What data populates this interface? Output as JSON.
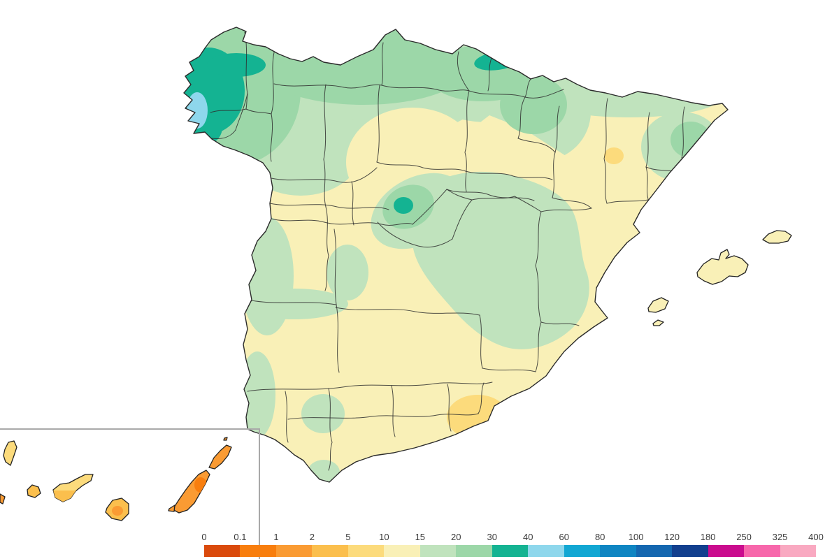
{
  "figure": {
    "type": "precipitation-choropleth-map",
    "country": "spain",
    "background": "#ffffff"
  },
  "legend": {
    "ticks": [
      "0",
      "0.1",
      "1",
      "2",
      "5",
      "10",
      "15",
      "20",
      "30",
      "40",
      "60",
      "80",
      "100",
      "120",
      "180",
      "250",
      "325",
      "400"
    ],
    "segment_order": [
      "0-0.1",
      "0.1-1",
      "1-2",
      "2-5",
      "5-10",
      "10-15",
      "15-20",
      "20-30",
      "30-40",
      "40-60",
      "60-80",
      "80-100",
      "100-120",
      "120-180",
      "180-250",
      "250-325",
      "325-400"
    ],
    "palette": {
      "0-0.1": "#da4a0c",
      "0.1-1": "#f87e0e",
      "1-2": "#fa9b33",
      "2-5": "#fbbf4d",
      "5-10": "#fcdb7c",
      "10-15": "#f9f0b7",
      "15-20": "#c0e3bd",
      "20-30": "#9cd7a8",
      "30-40": "#14b392",
      "40-60": "#8ed7ec",
      "60-80": "#12a7d3",
      "80-100": "#0f85c2",
      "100-120": "#1467b0",
      "120-180": "#123f8e",
      "180-250": "#ca0c8e",
      "250-325": "#f767ab",
      "325-400": "#f9a9c1"
    },
    "tick_text_color": "#3a3a3a"
  },
  "map": {
    "mainland_base_range": "10-15",
    "coast_stroke": "#2b2b2b",
    "province_border_stroke": "#2e2e2e",
    "inset_border_color": "#a9a9a9",
    "regions": [
      {
        "name": "galicia",
        "range": "20-30"
      },
      {
        "name": "galicia-west",
        "range": "30-40"
      },
      {
        "name": "rias-baixas-coast",
        "range": "40-60"
      },
      {
        "name": "cantabrian-coast-band",
        "range": "20-30"
      },
      {
        "name": "basque-coast",
        "range": "30-40"
      },
      {
        "name": "northern-meseta-fringe",
        "range": "15-20"
      },
      {
        "name": "burgos-valladolid-pocket",
        "range": "10-15"
      },
      {
        "name": "ebro-valley",
        "range": "10-15"
      },
      {
        "name": "ebro-valley-spot",
        "range": "5-10"
      },
      {
        "name": "sierra-de-guadarrama",
        "range": "30-40"
      },
      {
        "name": "madrid-surroundings",
        "range": "20-30"
      },
      {
        "name": "cuenca-teruel-uplands",
        "range": "15-20"
      },
      {
        "name": "northeast-catalonia",
        "range": "20-30"
      },
      {
        "name": "west-extremadura",
        "range": "15-20"
      },
      {
        "name": "north-seville-patch",
        "range": "15-20"
      },
      {
        "name": "strait-of-gibraltar",
        "range": "15-20"
      },
      {
        "name": "almeria-coast",
        "range": "5-10"
      },
      {
        "name": "balearic-islands",
        "range": "10-15"
      },
      {
        "name": "la-palma",
        "range": "5-10"
      },
      {
        "name": "tenerife-north",
        "range": "5-10"
      },
      {
        "name": "tenerife-south",
        "range": "2-5"
      },
      {
        "name": "la-gomera",
        "range": "2-5"
      },
      {
        "name": "el-hierro",
        "range": "1-2"
      },
      {
        "name": "gran-canaria",
        "range": "2-5"
      },
      {
        "name": "gran-canaria-core",
        "range": "1-2"
      },
      {
        "name": "fuerteventura",
        "range": "1-2"
      },
      {
        "name": "fuerteventura-core",
        "range": "0.1-1"
      },
      {
        "name": "lanzarote",
        "range": "1-2"
      }
    ]
  }
}
